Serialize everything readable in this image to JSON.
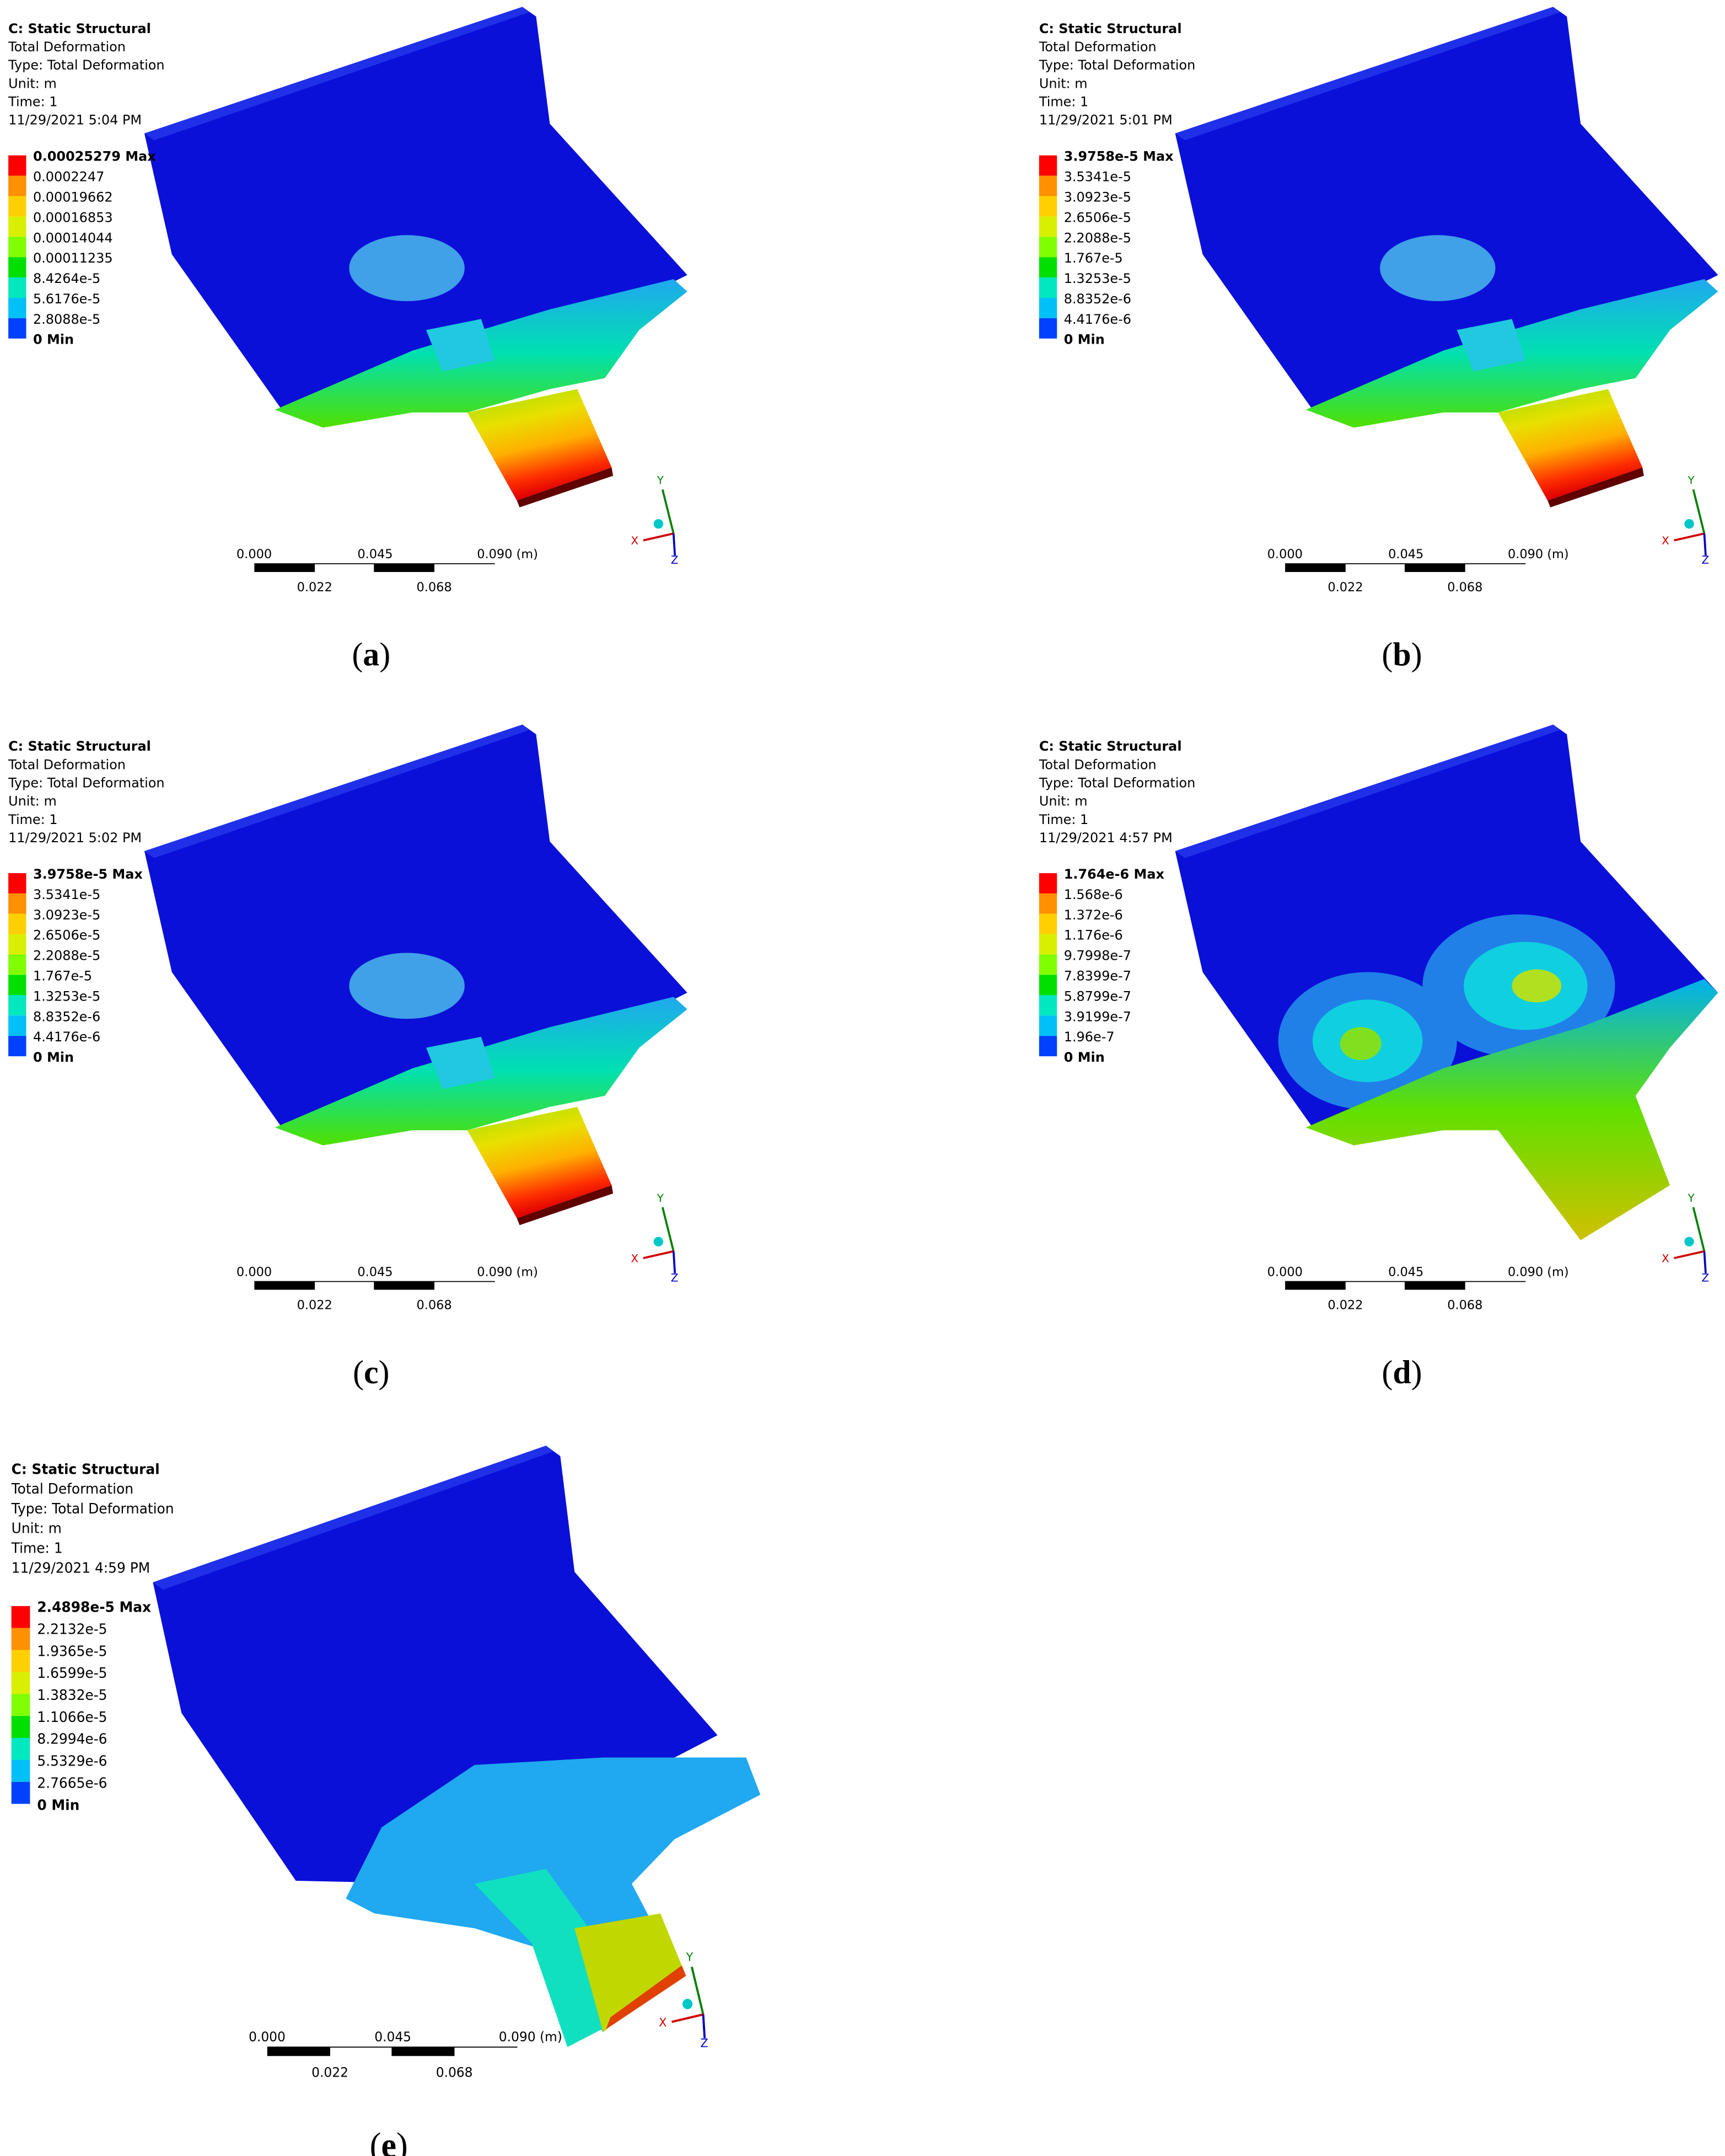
{
  "panels": [
    {
      "header": [
        "C: Static Structural",
        "Total Deformation",
        "Type: Total Deformation",
        "Unit: m",
        "Time: 1",
        "11/29/2021 5:04 PM"
      ],
      "legend": [
        "0.00025279 Max",
        "0.0002247",
        "0.00019662",
        "0.00016853",
        "0.00014044",
        "0.00011235",
        "8.4264e-5",
        "5.6176e-5",
        "2.8088e-5",
        "0 Min"
      ],
      "scale_top": [
        "0.000",
        "0.045",
        "0.090 (m)"
      ],
      "scale_bottom": [
        "0.022",
        "0.068"
      ],
      "axes": [
        "Y",
        "X",
        "Z"
      ],
      "caption": "a"
    },
    {
      "header": [
        "C: Static Structural",
        "Total Deformation",
        "Type: Total Deformation",
        "Unit: m",
        "Time: 1",
        "11/29/2021 5:01 PM"
      ],
      "legend": [
        "3.9758e-5 Max",
        "3.5341e-5",
        "3.0923e-5",
        "2.6506e-5",
        "2.2088e-5",
        "1.767e-5",
        "1.3253e-5",
        "8.8352e-6",
        "4.4176e-6",
        "0 Min"
      ],
      "scale_top": [
        "0.000",
        "0.045",
        "0.090 (m)"
      ],
      "scale_bottom": [
        "0.022",
        "0.068"
      ],
      "axes": [
        "Y",
        "X",
        "Z"
      ],
      "caption": "b"
    },
    {
      "header": [
        "C: Static Structural",
        "Total Deformation",
        "Type: Total Deformation",
        "Unit: m",
        "Time: 1",
        "11/29/2021 5:02 PM"
      ],
      "legend": [
        "3.9758e-5 Max",
        "3.5341e-5",
        "3.0923e-5",
        "2.6506e-5",
        "2.2088e-5",
        "1.767e-5",
        "1.3253e-5",
        "8.8352e-6",
        "4.4176e-6",
        "0 Min"
      ],
      "scale_top": [
        "0.000",
        "0.045",
        "0.090 (m)"
      ],
      "scale_bottom": [
        "0.022",
        "0.068"
      ],
      "axes": [
        "Y",
        "X",
        "Z"
      ],
      "caption": "c"
    },
    {
      "header": [
        "C: Static Structural",
        "Total Deformation",
        "Type: Total Deformation",
        "Unit: m",
        "Time: 1",
        "11/29/2021 4:57 PM"
      ],
      "legend": [
        "1.764e-6 Max",
        "1.568e-6",
        "1.372e-6",
        "1.176e-6",
        "9.7998e-7",
        "7.8399e-7",
        "5.8799e-7",
        "3.9199e-7",
        "1.96e-7",
        "0 Min"
      ],
      "scale_top": [
        "0.000",
        "0.045",
        "0.090 (m)"
      ],
      "scale_bottom": [
        "0.022",
        "0.068"
      ],
      "axes": [
        "Y",
        "X",
        "Z"
      ],
      "caption": "d"
    },
    {
      "header": [
        "C: Static Structural",
        "Total Deformation",
        "Type: Total Deformation",
        "Unit: m",
        "Time: 1",
        "11/29/2021 4:59 PM"
      ],
      "legend": [
        "2.4898e-5 Max",
        "2.2132e-5",
        "1.9365e-5",
        "1.6599e-5",
        "1.3832e-5",
        "1.1066e-5",
        "8.2994e-6",
        "5.5329e-6",
        "2.7665e-6",
        "0 Min"
      ],
      "scale_top": [
        "0.000",
        "0.045",
        "0.090 (m)"
      ],
      "scale_bottom": [
        "0.022",
        "0.068"
      ],
      "axes": [
        "Y",
        "X",
        "Z"
      ],
      "caption": "e"
    }
  ]
}
